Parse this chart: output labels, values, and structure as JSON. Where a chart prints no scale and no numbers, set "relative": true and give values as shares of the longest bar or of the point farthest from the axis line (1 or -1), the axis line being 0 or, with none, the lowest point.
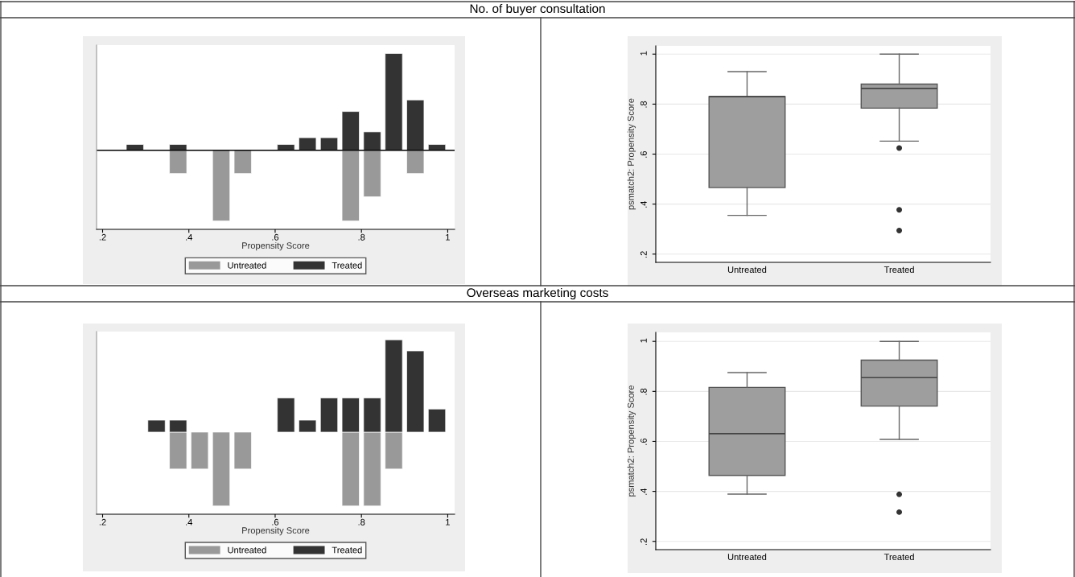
{
  "chart_data": [
    {
      "type": "other",
      "title": "No. of buyer consultation"
    },
    {
      "type": "bar",
      "xlabel": "Propensity Score",
      "relative": true,
      "tick_labels": "x",
      "legend": "bottom",
      "x": [
        0.275,
        0.375,
        0.475,
        0.525,
        0.625,
        0.675,
        0.725,
        0.775,
        0.825,
        0.875,
        0.925,
        0.975
      ],
      "series": [
        {
          "name": "Untreated",
          "color": "#999999",
          "values": [
            null,
            -0.24,
            -0.73,
            -0.24,
            null,
            null,
            null,
            -0.73,
            -0.48,
            null,
            -0.24,
            null
          ]
        },
        {
          "name": "Treated",
          "color": "#333333",
          "values": [
            0.06,
            0.06,
            null,
            null,
            0.06,
            0.13,
            0.13,
            0.4,
            0.19,
            1,
            0.52,
            0.06
          ]
        }
      ],
      "xlim": [
        0.186,
        1.016
      ],
      "xticks": [
        {
          "value": 0.2,
          "label": ".2"
        },
        {
          "value": 0.4,
          "label": ".4"
        },
        {
          "value": 0.6,
          "label": ".6"
        },
        {
          "value": 0.8,
          "label": ".8"
        },
        1
      ],
      "ref_lines": [
        {
          "axis": "y",
          "value": 0,
          "color": "#000000"
        }
      ]
    },
    {
      "type": "box",
      "ylabel": "psmatch2: Propensity Score",
      "categories": [
        "Untreated",
        "Treated"
      ],
      "grid": "y",
      "series": [
        {
          "color": "#9e9e9e",
          "boxes": [
            {
              "low": 0.355,
              "q1": 0.466,
              "median": 0.83,
              "q3": 0.83,
              "high": 0.93
            },
            {
              "low": 0.652,
              "q1": 0.784,
              "median": 0.863,
              "q3": 0.88,
              "high": 1.0,
              "outliers": [
                0.624,
                0.377,
                0.294
              ]
            }
          ]
        }
      ],
      "ylim": [
        0.167,
        1.033
      ],
      "yticks": [
        {
          "value": 0.2,
          "label": ".2"
        },
        {
          "value": 0.4,
          "label": ".4"
        },
        {
          "value": 0.6,
          "label": ".6"
        },
        {
          "value": 0.8,
          "label": ".8"
        },
        1
      ]
    },
    {
      "type": "other",
      "title": "Overseas marketing costs"
    },
    {
      "type": "bar",
      "xlabel": "Propensity Score",
      "relative": true,
      "tick_labels": "x",
      "legend": "bottom",
      "x": [
        0.325,
        0.375,
        0.425,
        0.475,
        0.525,
        0.625,
        0.675,
        0.725,
        0.775,
        0.825,
        0.875,
        0.925,
        0.975
      ],
      "series": [
        {
          "name": "Untreated",
          "color": "#999999",
          "values": [
            null,
            -0.4,
            -0.4,
            -0.8,
            -0.4,
            null,
            null,
            null,
            -0.8,
            -0.8,
            -0.4,
            null,
            null
          ]
        },
        {
          "name": "Treated",
          "color": "#333333",
          "values": [
            0.13,
            0.13,
            null,
            null,
            null,
            0.37,
            0.13,
            0.37,
            0.37,
            0.37,
            1,
            0.88,
            0.25
          ]
        }
      ],
      "xlim": [
        0.186,
        1.016
      ],
      "xticks": [
        {
          "value": 0.2,
          "label": ".2"
        },
        {
          "value": 0.4,
          "label": ".4"
        },
        {
          "value": 0.6,
          "label": ".6"
        },
        {
          "value": 0.8,
          "label": ".8"
        },
        1
      ]
    },
    {
      "type": "box",
      "ylabel": "psmatch2: Propensity Score",
      "categories": [
        "Untreated",
        "Treated"
      ],
      "grid": "y",
      "series": [
        {
          "color": "#9e9e9e",
          "boxes": [
            {
              "low": 0.389,
              "q1": 0.464,
              "median": 0.631,
              "q3": 0.816,
              "high": 0.875
            },
            {
              "low": 0.608,
              "q1": 0.741,
              "median": 0.855,
              "q3": 0.925,
              "high": 1.0,
              "outliers": [
                0.388,
                0.317
              ]
            }
          ]
        }
      ],
      "ylim": [
        0.167,
        1.036
      ],
      "yticks": [
        {
          "value": 0.2,
          "label": ".2"
        },
        {
          "value": 0.4,
          "label": ".4"
        },
        {
          "value": 0.6,
          "label": ".6"
        },
        {
          "value": 0.8,
          "label": ".8"
        },
        1
      ]
    }
  ]
}
